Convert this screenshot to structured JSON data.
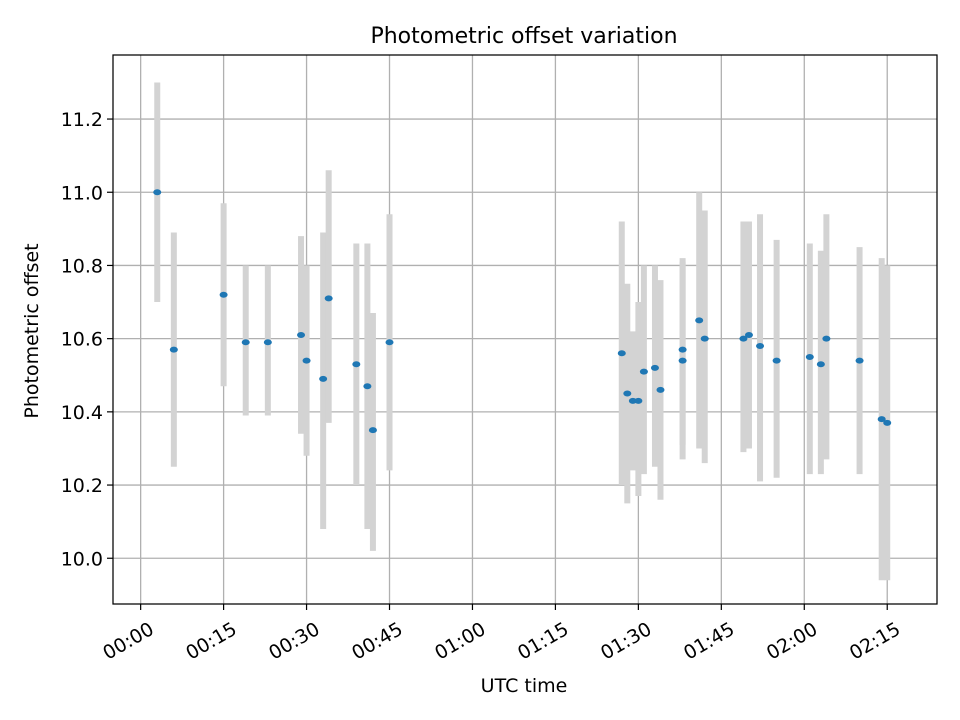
{
  "chart_data": {
    "type": "scatter",
    "title": "Photometric offset variation",
    "xlabel": "UTC time",
    "ylabel": "Photometric offset",
    "x_unit": "UTC time of day (HH:MM)",
    "xlim": [
      "23:55",
      "02:24"
    ],
    "ylim": [
      9.875,
      11.375
    ],
    "x_ticks": [
      "00:00",
      "00:15",
      "00:30",
      "00:45",
      "01:00",
      "01:15",
      "01:30",
      "01:45",
      "02:00",
      "02:15"
    ],
    "y_ticks": [
      "10.0",
      "10.2",
      "10.4",
      "10.6",
      "10.8",
      "11.0",
      "11.2"
    ],
    "grid": true,
    "colors": {
      "points": "#1f77b4",
      "errorbars": "#d3d3d3",
      "grid": "#b0b0b0"
    },
    "points": [
      {
        "x": "00:03",
        "y": 11.0,
        "ylo": 10.7,
        "yhi": 11.3
      },
      {
        "x": "00:06",
        "y": 10.57,
        "ylo": 10.25,
        "yhi": 10.89
      },
      {
        "x": "00:15",
        "y": 10.72,
        "ylo": 10.47,
        "yhi": 10.97
      },
      {
        "x": "00:19",
        "y": 10.59,
        "ylo": 10.39,
        "yhi": 10.8
      },
      {
        "x": "00:23",
        "y": 10.59,
        "ylo": 10.39,
        "yhi": 10.8
      },
      {
        "x": "00:29",
        "y": 10.61,
        "ylo": 10.34,
        "yhi": 10.88
      },
      {
        "x": "00:30",
        "y": 10.54,
        "ylo": 10.28,
        "yhi": 10.8
      },
      {
        "x": "00:33",
        "y": 10.49,
        "ylo": 10.08,
        "yhi": 10.89
      },
      {
        "x": "00:34",
        "y": 10.71,
        "ylo": 10.37,
        "yhi": 11.06
      },
      {
        "x": "00:39",
        "y": 10.53,
        "ylo": 10.2,
        "yhi": 10.86
      },
      {
        "x": "00:41",
        "y": 10.47,
        "ylo": 10.08,
        "yhi": 10.86
      },
      {
        "x": "00:42",
        "y": 10.35,
        "ylo": 10.02,
        "yhi": 10.67
      },
      {
        "x": "00:45",
        "y": 10.59,
        "ylo": 10.24,
        "yhi": 10.94
      },
      {
        "x": "01:27",
        "y": 10.56,
        "ylo": 10.2,
        "yhi": 10.92
      },
      {
        "x": "01:28",
        "y": 10.45,
        "ylo": 10.15,
        "yhi": 10.75
      },
      {
        "x": "01:29",
        "y": 10.43,
        "ylo": 10.24,
        "yhi": 10.62
      },
      {
        "x": "01:30",
        "y": 10.43,
        "ylo": 10.17,
        "yhi": 10.7
      },
      {
        "x": "01:31",
        "y": 10.51,
        "ylo": 10.23,
        "yhi": 10.8
      },
      {
        "x": "01:33",
        "y": 10.52,
        "ylo": 10.25,
        "yhi": 10.8
      },
      {
        "x": "01:34",
        "y": 10.46,
        "ylo": 10.16,
        "yhi": 10.76
      },
      {
        "x": "01:38",
        "y": 10.57,
        "ylo": 10.31,
        "yhi": 10.82
      },
      {
        "x": "01:38",
        "y": 10.54,
        "ylo": 10.27,
        "yhi": 10.81
      },
      {
        "x": "01:41",
        "y": 10.65,
        "ylo": 10.3,
        "yhi": 11.0
      },
      {
        "x": "01:42",
        "y": 10.6,
        "ylo": 10.26,
        "yhi": 10.95
      },
      {
        "x": "01:49",
        "y": 10.6,
        "ylo": 10.29,
        "yhi": 10.92
      },
      {
        "x": "01:50",
        "y": 10.61,
        "ylo": 10.3,
        "yhi": 10.92
      },
      {
        "x": "01:52",
        "y": 10.58,
        "ylo": 10.21,
        "yhi": 10.94
      },
      {
        "x": "01:55",
        "y": 10.54,
        "ylo": 10.22,
        "yhi": 10.87
      },
      {
        "x": "02:01",
        "y": 10.55,
        "ylo": 10.23,
        "yhi": 10.86
      },
      {
        "x": "02:03",
        "y": 10.53,
        "ylo": 10.23,
        "yhi": 10.84
      },
      {
        "x": "02:04",
        "y": 10.6,
        "ylo": 10.27,
        "yhi": 10.94
      },
      {
        "x": "02:10",
        "y": 10.54,
        "ylo": 10.23,
        "yhi": 10.85
      },
      {
        "x": "02:14",
        "y": 10.38,
        "ylo": 9.94,
        "yhi": 10.82
      },
      {
        "x": "02:15",
        "y": 10.37,
        "ylo": 9.94,
        "yhi": 10.8
      }
    ]
  }
}
